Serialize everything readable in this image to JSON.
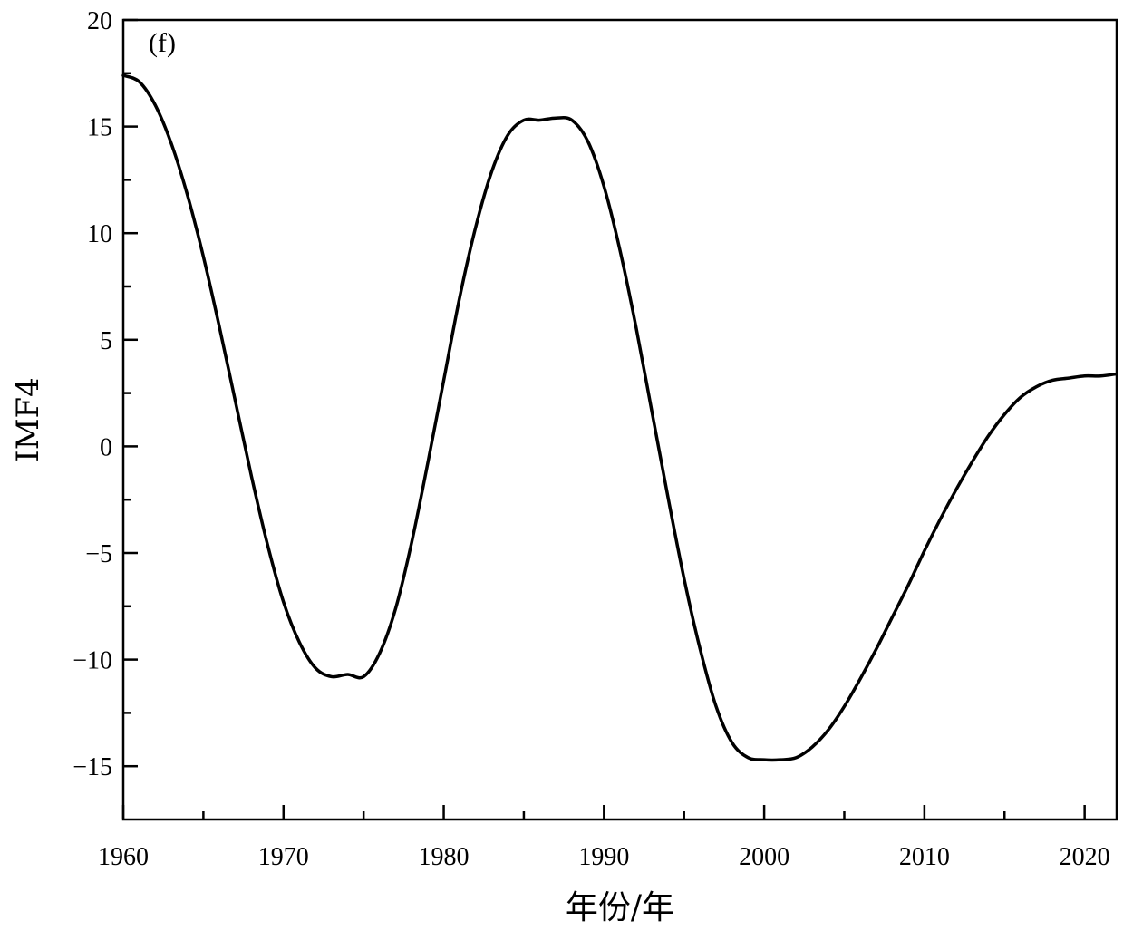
{
  "chart_data": {
    "type": "line",
    "panel_label": "(f)",
    "xlabel": "年份/年",
    "ylabel": "IMF4",
    "xlim": [
      1960,
      2022
    ],
    "ylim": [
      -17.5,
      20
    ],
    "x_ticks": [
      1960,
      1970,
      1980,
      1990,
      2000,
      2010,
      2020
    ],
    "x_tick_labels": [
      "1960",
      "1970",
      "1980",
      "1990",
      "2000",
      "2010",
      "2020"
    ],
    "y_ticks": [
      -15,
      -10,
      -5,
      0,
      5,
      10,
      15,
      20
    ],
    "y_tick_labels": [
      "−15",
      "−10",
      "−5",
      "0",
      "5",
      "10",
      "15",
      "20"
    ],
    "grid": false,
    "series": [
      {
        "color": "#000000",
        "x": [
          1960,
          1961,
          1962,
          1963,
          1964,
          1965,
          1966,
          1967,
          1968,
          1969,
          1970,
          1971,
          1972,
          1973,
          1974,
          1975,
          1976,
          1977,
          1978,
          1979,
          1980,
          1981,
          1982,
          1983,
          1984,
          1985,
          1986,
          1987,
          1988,
          1989,
          1990,
          1991,
          1992,
          1993,
          1994,
          1995,
          1996,
          1997,
          1998,
          1999,
          2000,
          2001,
          2002,
          2003,
          2004,
          2005,
          2006,
          2007,
          2008,
          2009,
          2010,
          2011,
          2012,
          2013,
          2014,
          2015,
          2016,
          2017,
          2018,
          2019,
          2020,
          2021,
          2022
        ],
        "y": [
          17.4,
          17.1,
          16.0,
          14.2,
          11.8,
          8.9,
          5.6,
          2.1,
          -1.4,
          -4.6,
          -7.3,
          -9.2,
          -10.4,
          -10.8,
          -10.7,
          -10.8,
          -9.7,
          -7.6,
          -4.5,
          -0.8,
          3.1,
          7.0,
          10.3,
          12.9,
          14.6,
          15.3,
          15.3,
          15.4,
          15.3,
          14.3,
          12.2,
          9.2,
          5.6,
          1.6,
          -2.4,
          -6.2,
          -9.5,
          -12.2,
          -13.9,
          -14.6,
          -14.7,
          -14.7,
          -14.6,
          -14.1,
          -13.3,
          -12.2,
          -10.9,
          -9.5,
          -8.0,
          -6.5,
          -4.9,
          -3.4,
          -2.0,
          -0.7,
          0.5,
          1.5,
          2.3,
          2.8,
          3.1,
          3.2,
          3.3,
          3.3,
          3.4
        ]
      }
    ]
  }
}
